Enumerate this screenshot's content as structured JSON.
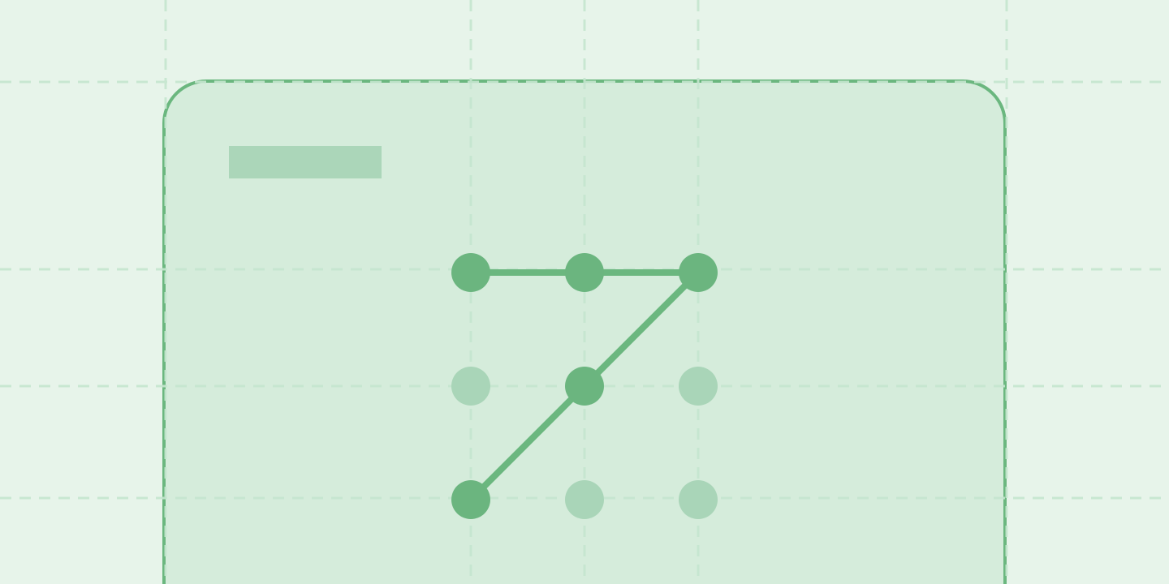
{
  "illustration": {
    "subject": "pattern-lock",
    "colors": {
      "background": "#e7f4ea",
      "card_fill": "#d5ecdb",
      "card_border": "#6bb77f",
      "placeholder_bar": "#abd6b9",
      "guide_lines": "#c5e6cf",
      "dot_active": "#6bb57f",
      "dot_inactive": "#a9d5b8",
      "pattern_line": "#6bb77f"
    },
    "grid": {
      "rows": 3,
      "cols": 3
    },
    "active_dots": [
      [
        0,
        0
      ],
      [
        0,
        1
      ],
      [
        0,
        2
      ],
      [
        1,
        1
      ],
      [
        2,
        0
      ]
    ],
    "pattern_sequence": [
      [
        0,
        0
      ],
      [
        0,
        1
      ],
      [
        0,
        2
      ],
      [
        1,
        1
      ],
      [
        2,
        0
      ]
    ]
  }
}
